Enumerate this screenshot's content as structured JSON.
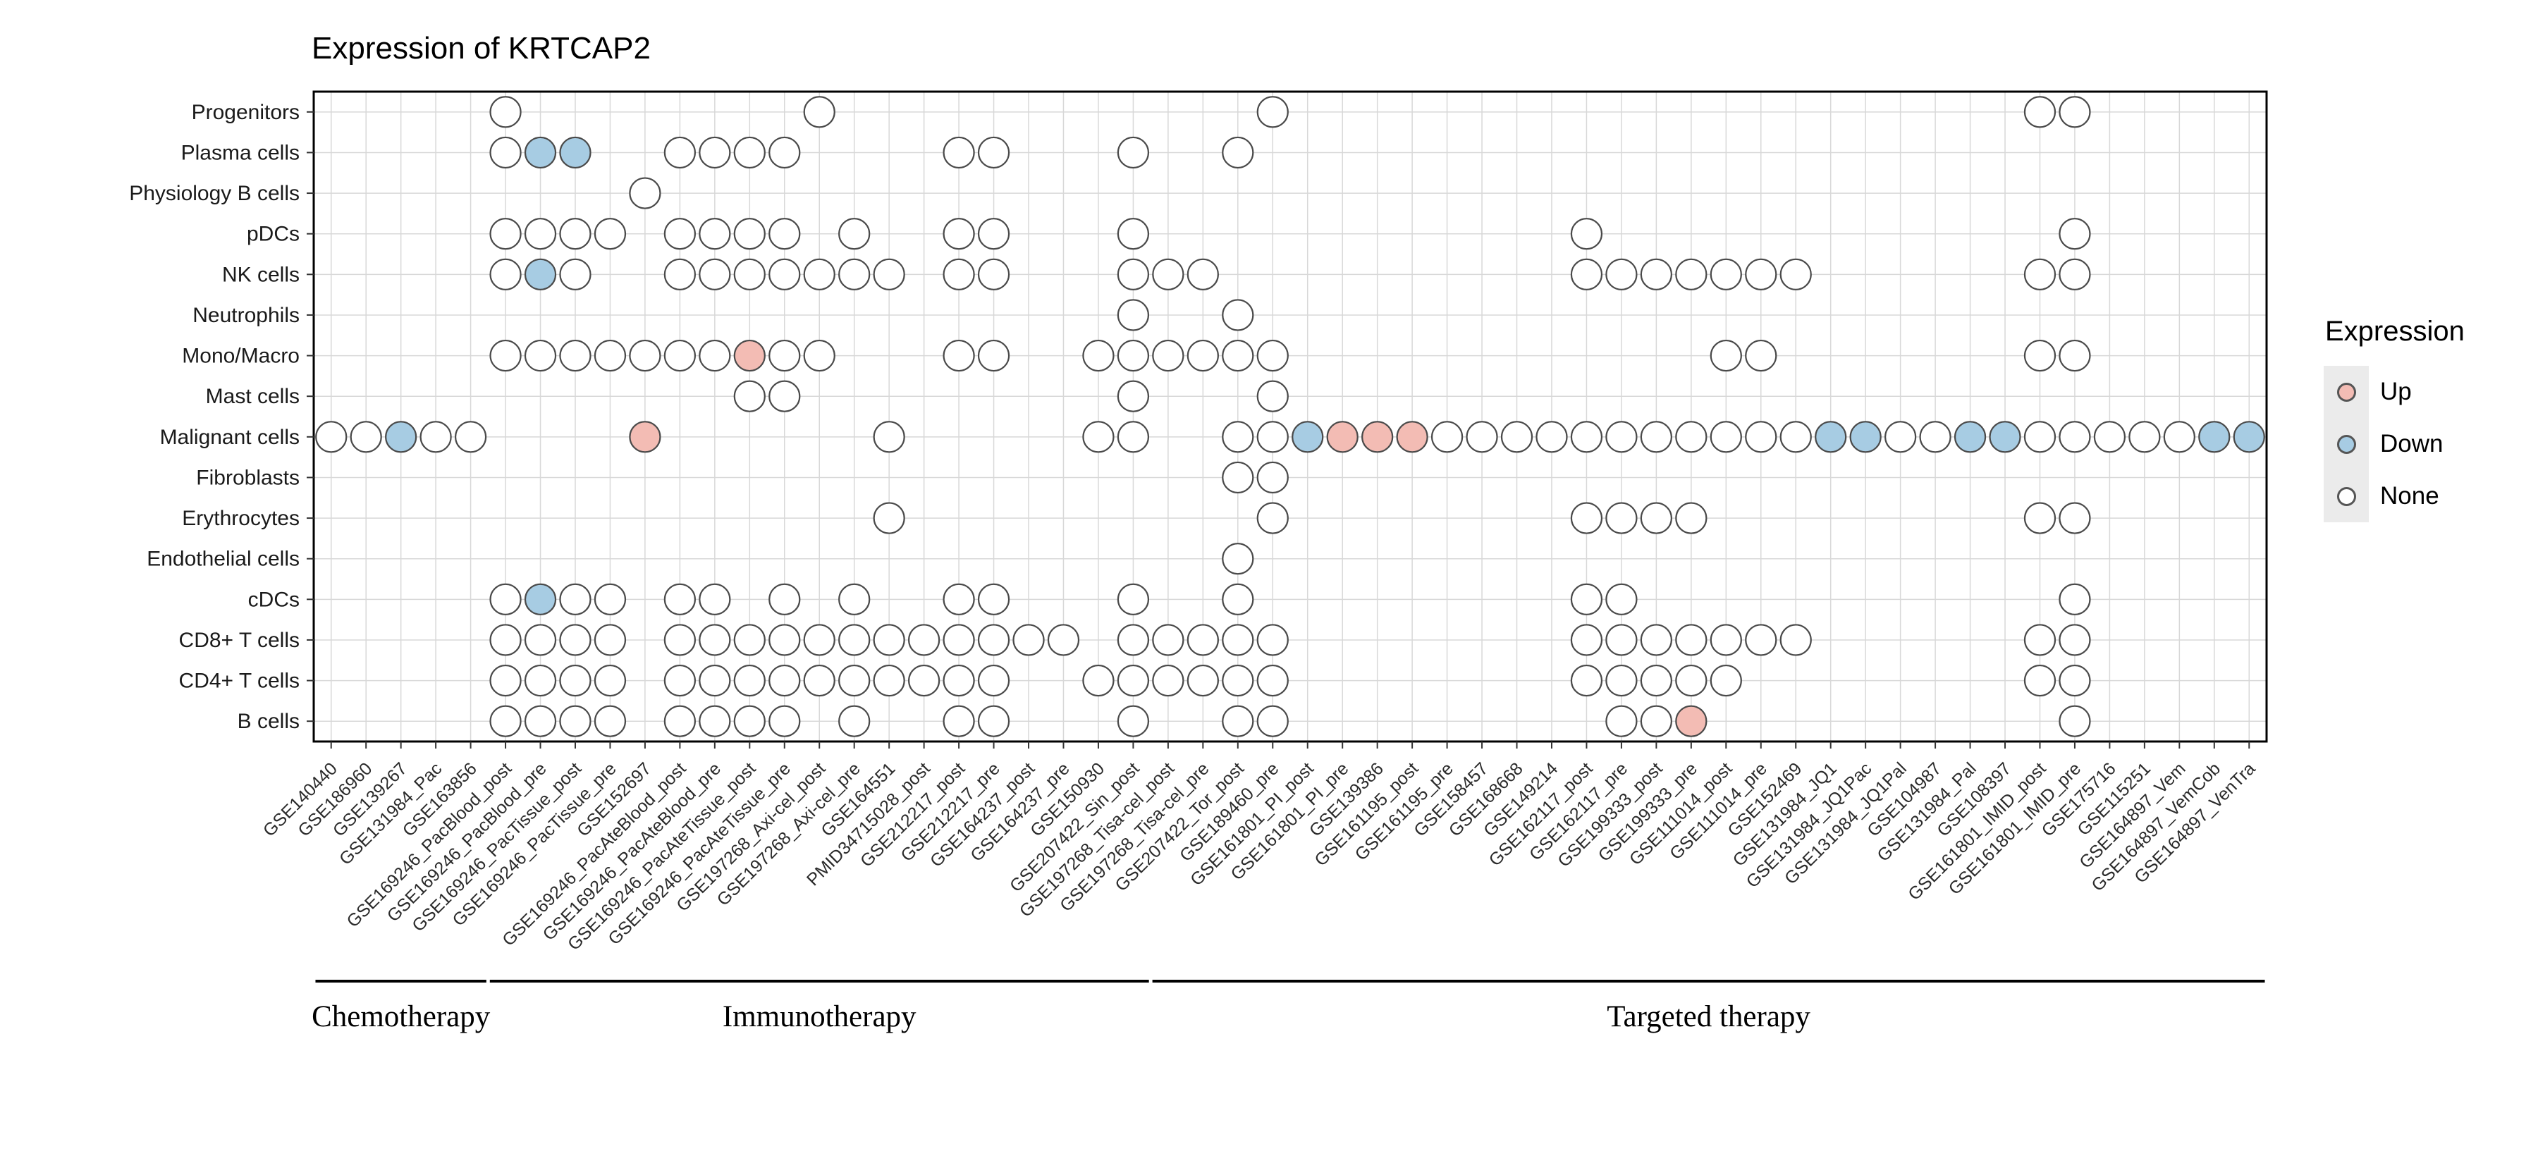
{
  "legend": {
    "title": "Expression",
    "items": [
      {
        "label": "Up",
        "color": "#f3bcb4"
      },
      {
        "label": "Down",
        "color": "#a7cce3"
      },
      {
        "label": "None",
        "color": "#ffffff"
      }
    ]
  },
  "groups": [
    {
      "label": "Chemotherapy",
      "start": 0,
      "end": 4
    },
    {
      "label": "Immunotherapy",
      "start": 5,
      "end": 23
    },
    {
      "label": "Targeted therapy",
      "start": 24,
      "end": 55
    }
  ],
  "chart_data": {
    "type": "heatmap",
    "subtype": "categorical-dot-matrix",
    "title": "Expression of KRTCAP2",
    "xlabel": "",
    "ylabel": "",
    "legend_position": "right",
    "grid": true,
    "rows": [
      "Progenitors",
      "Plasma cells",
      "Physiology B cells",
      "pDCs",
      "NK cells",
      "Neutrophils",
      "Mono/Macro",
      "Mast cells",
      "Malignant cells",
      "Fibroblasts",
      "Erythrocytes",
      "Endothelial cells",
      "cDCs",
      "CD8+ T cells",
      "CD4+ T cells",
      "B cells"
    ],
    "columns": [
      "GSE140440",
      "GSE186960",
      "GSE139267",
      "GSE131984_Pac",
      "GSE163856",
      "GSE169246_PacBlood_post",
      "GSE169246_PacBlood_pre",
      "GSE169246_PacTissue_post",
      "GSE169246_PacTissue_pre",
      "GSE152697",
      "GSE169246_PacAteBlood_post",
      "GSE169246_PacAteBlood_pre",
      "GSE169246_PacAteTissue_post",
      "GSE169246_PacAteTissue_pre",
      "GSE197268_Axi-cel_post",
      "GSE197268_Axi-cel_pre",
      "GSE164551",
      "PMID34715028_post",
      "GSE212217_post",
      "GSE212217_pre",
      "GSE164237_post",
      "GSE164237_pre",
      "GSE150930",
      "GSE207422_Sin_post",
      "GSE197268_Tisa-cel_post",
      "GSE197268_Tisa-cel_pre",
      "GSE207422_Tor_post",
      "GSE189460_pre",
      "GSE161801_PI_post",
      "GSE161801_PI_pre",
      "GSE139386",
      "GSE161195_post",
      "GSE161195_pre",
      "GSE158457",
      "GSE168668",
      "GSE149214",
      "GSE162117_post",
      "GSE162117_pre",
      "GSE199333_post",
      "GSE199333_pre",
      "GSE111014_post",
      "GSE111014_pre",
      "GSE152469",
      "GSE131984_JQ1",
      "GSE131984_JQ1Pac",
      "GSE131984_JQ1Pal",
      "GSE104987",
      "GSE131984_Pal",
      "GSE108397",
      "GSE161801_IMID_post",
      "GSE161801_IMID_pre",
      "GSE175716",
      "GSE115251",
      "GSE164897_Vem",
      "GSE164897_VemCob",
      "GSE164897_VenTra"
    ],
    "cell_states": {
      "o": "None",
      "u": "Up",
      "d": "Down",
      ".": "absent"
    },
    "matrix": [
      ".....o........o............o.....................oo.....",
      ".....odd..oooo....oo...o..o.............................",
      ".........o..............................................",
      ".....oooo.oooo.o..oo...o............o.............o.....",
      ".....odo..ooooooo.oo...ooo..........ooooooo......oo.....",
      ".......................o..o.............................",
      ".....ooooooouoo...oo..oooooo............oo.......oo.....",
      "............oo.........o...o............................",
      "oodoo....u......o.....oo..ooduuuoooooooooooddooddooooodd",
      "..........................oo............................",
      "................o..........o........oooo.........oo.....",
      "..........................o.............................",
      ".....odoo.oo.o.o..oo...o..o.........oo............o.....",
      ".....oooo.oooooooooooo.ooooo........ooooooo......oo.....",
      ".....oooo.oooooooooo..oooooo........ooooo........oo.....",
      ".....oooo.oooo.o..oo...o..oo.........oou..........o....."
    ],
    "colors": {
      "up": "#f3bcb4",
      "down": "#a7cce3",
      "none": "#ffffff",
      "dot_stroke": "#4a4a4a",
      "grid": "#d8d8d8",
      "panel_border": "#000000",
      "axis_text": "#1a1a1a"
    }
  }
}
